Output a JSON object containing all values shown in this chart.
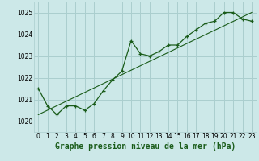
{
  "title": "Graphe pression niveau de la mer (hPa)",
  "bg_color": "#cce8e8",
  "grid_color": "#aacece",
  "line_color": "#1a5c1a",
  "xlim": [
    -0.5,
    23.5
  ],
  "ylim": [
    1019.5,
    1025.5
  ],
  "yticks": [
    1020,
    1021,
    1022,
    1023,
    1024,
    1025
  ],
  "xticks": [
    0,
    1,
    2,
    3,
    4,
    5,
    6,
    7,
    8,
    9,
    10,
    11,
    12,
    13,
    14,
    15,
    16,
    17,
    18,
    19,
    20,
    21,
    22,
    23
  ],
  "data_x": [
    0,
    1,
    2,
    3,
    4,
    5,
    6,
    7,
    8,
    9,
    10,
    11,
    12,
    13,
    14,
    15,
    16,
    17,
    18,
    19,
    20,
    21,
    22,
    23
  ],
  "data_y": [
    1021.5,
    1020.7,
    1020.3,
    1020.7,
    1020.7,
    1020.5,
    1020.8,
    1021.4,
    1021.9,
    1022.3,
    1023.7,
    1023.1,
    1023.0,
    1023.2,
    1023.5,
    1023.5,
    1023.9,
    1024.2,
    1024.5,
    1024.6,
    1025.0,
    1025.0,
    1024.7,
    1024.6
  ],
  "trend_x": [
    0,
    23
  ],
  "trend_y": [
    1020.3,
    1025.0
  ],
  "title_fontsize": 7,
  "tick_fontsize": 5.5
}
